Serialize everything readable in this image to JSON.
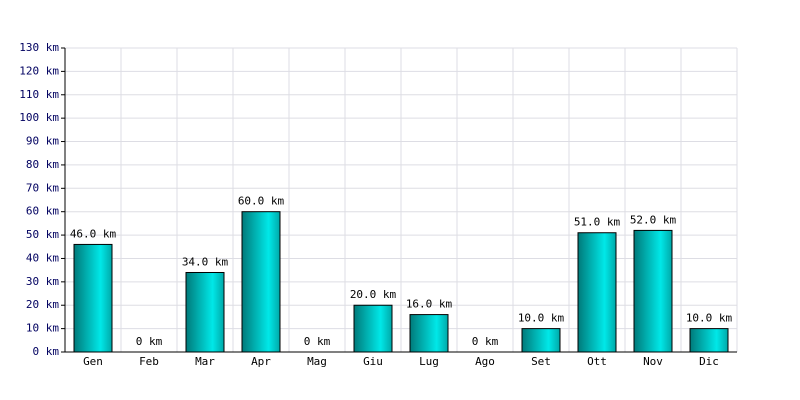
{
  "chart_data": {
    "type": "bar",
    "categories": [
      "Gen",
      "Feb",
      "Mar",
      "Apr",
      "Mag",
      "Giu",
      "Lug",
      "Ago",
      "Set",
      "Ott",
      "Nov",
      "Dic"
    ],
    "values": [
      46,
      0,
      34,
      60,
      0,
      20,
      16,
      0,
      10,
      51,
      52,
      10
    ],
    "value_labels": [
      "46.0 km",
      "0 km",
      "34.0 km",
      "60.0 km",
      "0 km",
      "20.0 km",
      "16.0 km",
      "0 km",
      "10.0 km",
      "51.0 km",
      "52.0 km",
      "10.0 km"
    ],
    "color": "#00e8e8",
    "ylim": [
      0,
      130
    ],
    "yticks": [
      {
        "value": 0,
        "label": "0 km"
      },
      {
        "value": 10,
        "label": "10 km"
      },
      {
        "value": 20,
        "label": "20 km"
      },
      {
        "value": 30,
        "label": "30 km"
      },
      {
        "value": 40,
        "label": "40 km"
      },
      {
        "value": 50,
        "label": "50 km"
      },
      {
        "value": 60,
        "label": "60 km"
      },
      {
        "value": 70,
        "label": "70 km"
      },
      {
        "value": 80,
        "label": "80 km"
      },
      {
        "value": 90,
        "label": "90 km"
      },
      {
        "value": 100,
        "label": "100 km"
      },
      {
        "value": 110,
        "label": "110 km"
      },
      {
        "value": 120,
        "label": "120 km"
      },
      {
        "value": 130,
        "label": "130 km"
      }
    ],
    "grid": true
  }
}
